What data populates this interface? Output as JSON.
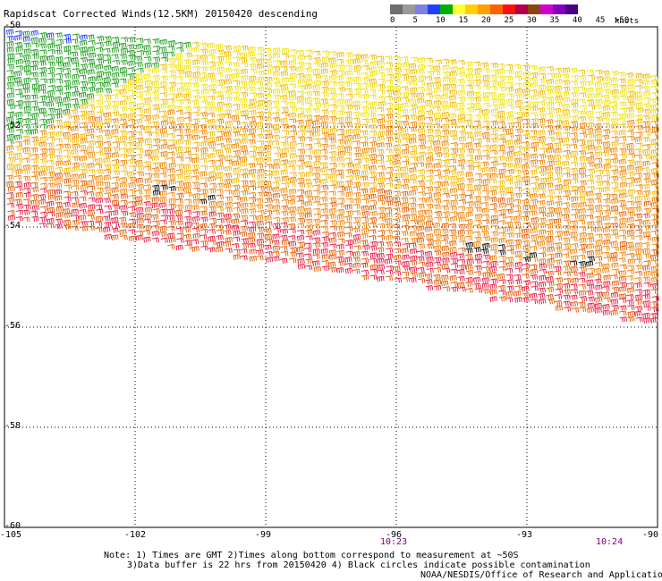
{
  "title": "Rapidscat Corrected Winds(12.5KM) 20150420 descending",
  "legend": {
    "unit": "knots",
    "labels": [
      "0",
      "5",
      "10",
      "15",
      "20",
      "25",
      "30",
      "35",
      "40",
      "45",
      ">50"
    ],
    "colors": [
      "#6e6e6e",
      "#9a9a9a",
      "#8080e0",
      "#2040ff",
      "#00b000",
      "#ffff30",
      "#ffd000",
      "#ffa000",
      "#ff6000",
      "#ff1010",
      "#b0004a",
      "#8b4513",
      "#d000d0",
      "#8000c0",
      "#4b0082"
    ]
  },
  "map": {
    "lon_labels": [
      "-105",
      "-102",
      "-99",
      "-96",
      "-93",
      "-90"
    ],
    "lat_labels": [
      "-50",
      "-52",
      "-54",
      "-56",
      "-58",
      "-60"
    ],
    "time_labels": [
      "10:23",
      "10:24"
    ]
  },
  "notes": [
    "Note: 1) Times are GMT 2)Times along bottom correspond to measurement at ~50S",
    "3)Data buffer is 22 hrs from 20150420 4) Black circles indicate possible contamination",
    "NOAA/NESDIS/Office of Research and Applications"
  ]
}
